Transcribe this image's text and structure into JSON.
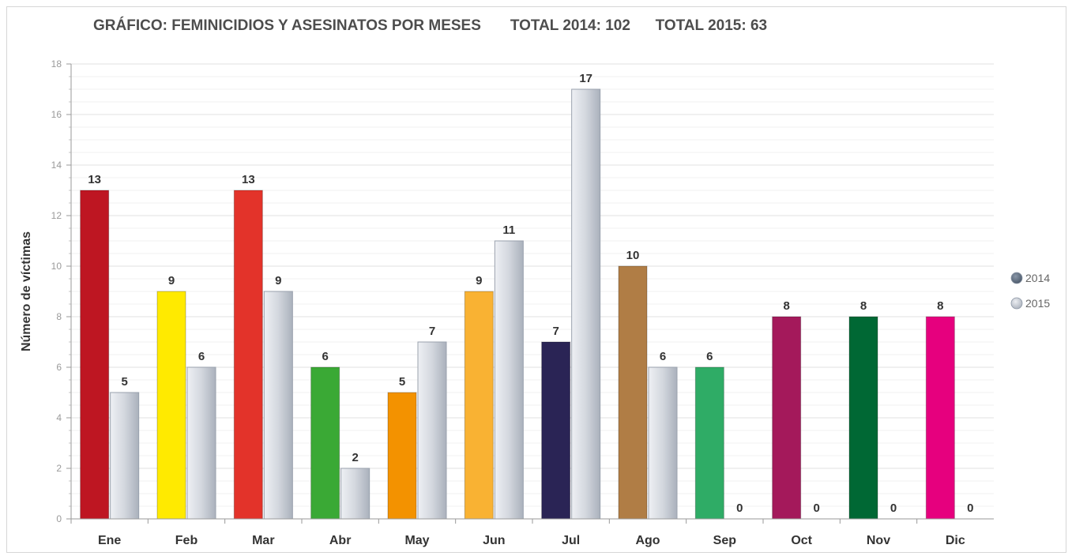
{
  "chart_data": {
    "type": "bar",
    "title": "GRÁFICO: FEMINICIDIOS Y ASESINATOS POR MESES       TOTAL 2014: 102      TOTAL 2015: 63",
    "xlabel": "",
    "ylabel": "Número de víctimas",
    "ylim": [
      0,
      18
    ],
    "yticks": [
      0,
      2,
      4,
      6,
      8,
      10,
      12,
      14,
      16,
      18
    ],
    "grid": true,
    "legend_position": "right",
    "categories": [
      "Ene",
      "Feb",
      "Mar",
      "Abr",
      "May",
      "Jun",
      "Jul",
      "Ago",
      "Sep",
      "Oct",
      "Nov",
      "Dic"
    ],
    "series": [
      {
        "name": "2014",
        "values": [
          13,
          9,
          13,
          6,
          5,
          9,
          7,
          10,
          6,
          8,
          8,
          8
        ],
        "legend_color": "#5f6f82",
        "bar_colors": [
          "#be1622",
          "#ffea00",
          "#e3332a",
          "#3aa935",
          "#f39200",
          "#f9b233",
          "#2a2455",
          "#b07d45",
          "#2fac66",
          "#a4195b",
          "#006834",
          "#e6007e"
        ]
      },
      {
        "name": "2015",
        "values": [
          5,
          6,
          9,
          2,
          7,
          11,
          17,
          6,
          0,
          0,
          0,
          0
        ],
        "legend_color": "#c5cad3",
        "bar_color": "#c9ced8"
      }
    ]
  }
}
